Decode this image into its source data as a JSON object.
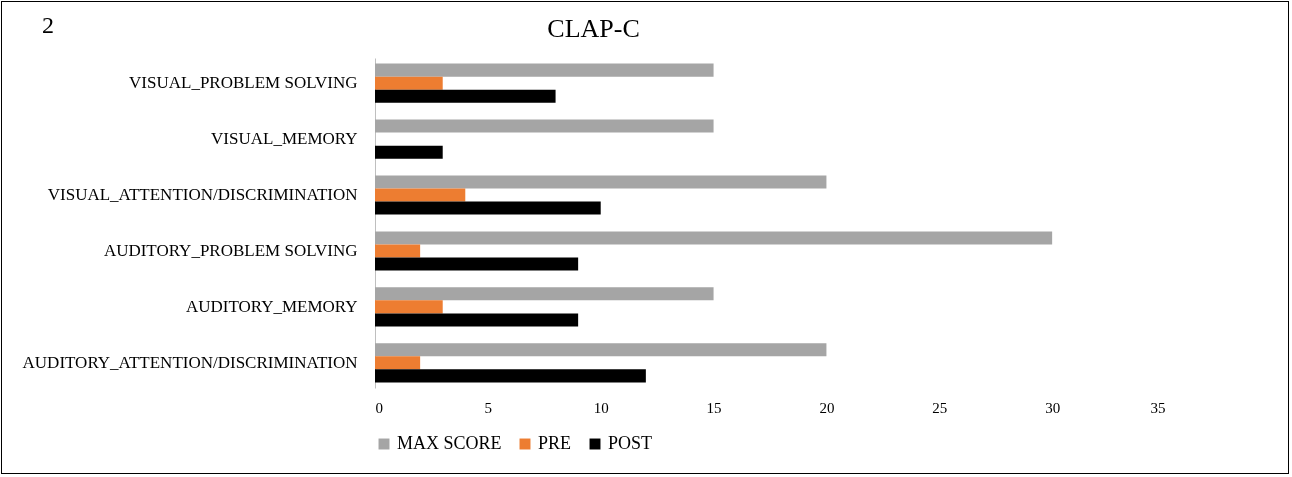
{
  "chart_data": {
    "type": "bar",
    "orientation": "horizontal",
    "title": "CLAP-C",
    "annotations": [
      "2"
    ],
    "categories": [
      "VISUAL_PROBLEM SOLVING",
      "VISUAL_MEMORY",
      "VISUAL_ATTENTION/DISCRIMINATION",
      "AUDITORY_PROBLEM SOLVING",
      "AUDITORY_MEMORY",
      "AUDITORY_ATTENTION/DISCRIMINATION"
    ],
    "series": [
      {
        "name": "MAX SCORE",
        "color": "#a5a5a5",
        "values": [
          15,
          15,
          20,
          30,
          15,
          20
        ]
      },
      {
        "name": "PRE",
        "color": "#ed7d31",
        "values": [
          3,
          0,
          4,
          2,
          3,
          2
        ]
      },
      {
        "name": "POST",
        "color": "#000000",
        "values": [
          8,
          3,
          10,
          9,
          9,
          12
        ]
      }
    ],
    "xlim": [
      0,
      35
    ],
    "xticks": [
      0,
      5,
      10,
      15,
      20,
      25,
      30,
      35
    ],
    "grid": false,
    "legend": "bottom"
  }
}
